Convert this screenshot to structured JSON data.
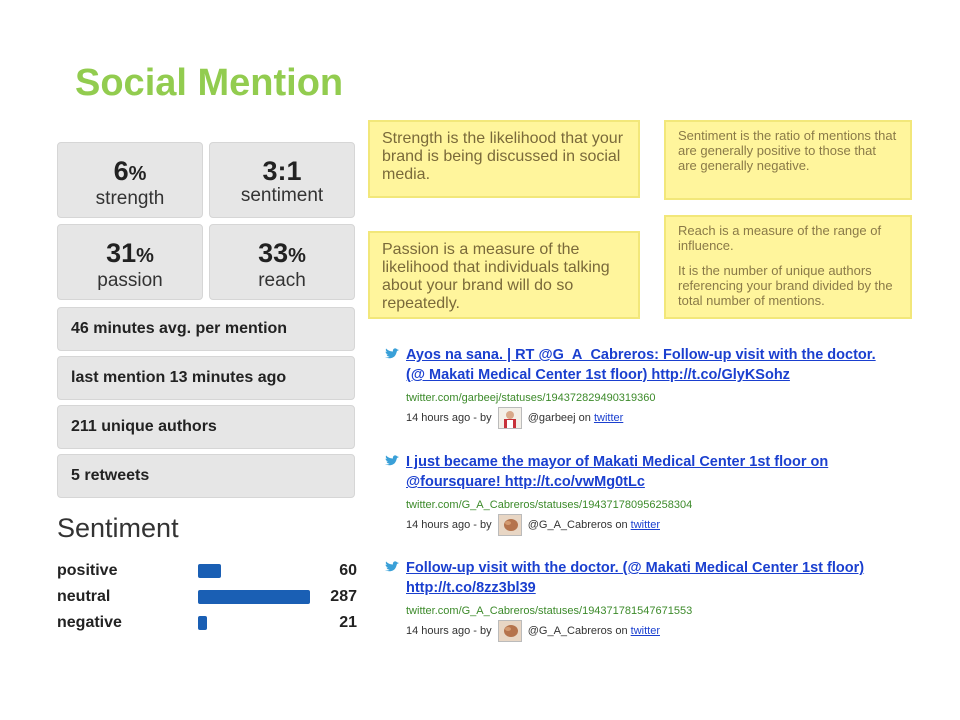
{
  "title": "Social Mention",
  "metrics": {
    "strength": {
      "value": "6",
      "unit": "%",
      "label": "strength"
    },
    "sentiment": {
      "value": "3:1",
      "label": "sentiment"
    },
    "passion": {
      "value": "31",
      "unit": "%",
      "label": "passion"
    },
    "reach": {
      "value": "33",
      "unit": "%",
      "label": "reach"
    }
  },
  "stats": [
    "46 minutes avg. per mention",
    "last mention 13 minutes ago",
    "211 unique authors",
    "5 retweets"
  ],
  "sentiment": {
    "heading": "Sentiment",
    "rows": [
      {
        "label": "positive",
        "value": "60"
      },
      {
        "label": "neutral",
        "value": "287"
      },
      {
        "label": "negative",
        "value": "21"
      }
    ]
  },
  "callouts": {
    "strength": "Strength is the likelihood that your brand is being discussed in social media.",
    "passion": "Passion is a measure of the likelihood that individuals talking about your brand will do so repeatedly.",
    "sentiment": "Sentiment is the ratio of mentions that are generally positive to those that are generally negative.",
    "reach_1": "Reach is a measure of the range of influence.",
    "reach_2": "It is the number of unique authors referencing your brand divided by the total number of mentions."
  },
  "tweets": [
    {
      "text": "Ayos na sana. | RT @G_A_Cabreros: Follow-up visit with the doctor. (@ Makati Medical Center 1st floor) http://t.co/GlyKSohz",
      "url": "twitter.com/garbeej/statuses/194372829490319360",
      "time": "14 hours ago - by",
      "author": "@garbeej on",
      "source": "twitter"
    },
    {
      "text": "I just became the mayor of Makati Medical Center 1st floor on @foursquare! http://t.co/vwMg0tLc",
      "url": "twitter.com/G_A_Cabreros/statuses/194371780956258304",
      "time": "14 hours ago - by",
      "author": "@G_A_Cabreros on",
      "source": "twitter"
    },
    {
      "text": "Follow-up visit with the doctor. (@ Makati Medical Center 1st floor) http://t.co/8zz3bl39",
      "url": "twitter.com/G_A_Cabreros/statuses/194371781547671553",
      "time": "14 hours ago - by",
      "author": "@G_A_Cabreros on",
      "source": "twitter"
    }
  ],
  "colors": {
    "title": "#92cc4f",
    "bar": "#1a5fb4",
    "callout_bg": "#fff59c",
    "link": "#1a3fcf",
    "url": "#3c8a2a"
  }
}
